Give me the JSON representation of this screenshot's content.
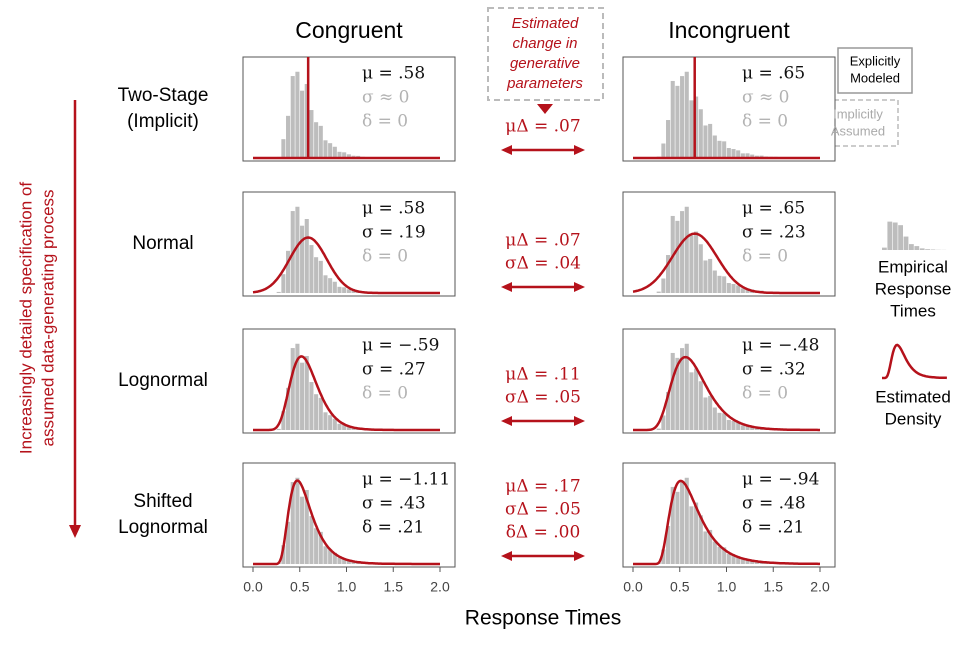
{
  "columns": [
    "Congruent",
    "Incongruent"
  ],
  "rows": [
    {
      "label": [
        "Two-Stage",
        "(Implicit)"
      ],
      "congruent": [
        {
          "text": "μ = .58",
          "implicit": false
        },
        {
          "text": "σ ≈ 0",
          "implicit": true
        },
        {
          "text": "δ = 0",
          "implicit": true
        }
      ],
      "incongruent": [
        {
          "text": "μ = .65",
          "implicit": false
        },
        {
          "text": "σ ≈ 0",
          "implicit": true
        },
        {
          "text": "δ = 0",
          "implicit": true
        }
      ],
      "change": [
        "μΔ = .07"
      ]
    },
    {
      "label": [
        "Normal"
      ],
      "congruent": [
        {
          "text": "μ = .58",
          "implicit": false
        },
        {
          "text": "σ = .19",
          "implicit": false
        },
        {
          "text": "δ = 0",
          "implicit": true
        }
      ],
      "incongruent": [
        {
          "text": "μ = .65",
          "implicit": false
        },
        {
          "text": "σ = .23",
          "implicit": false
        },
        {
          "text": "δ = 0",
          "implicit": true
        }
      ],
      "change": [
        "μΔ = .07",
        "σΔ = .04"
      ]
    },
    {
      "label": [
        "Lognormal"
      ],
      "congruent": [
        {
          "text": "μ = −.59",
          "implicit": false
        },
        {
          "text": "σ = .27",
          "implicit": false
        },
        {
          "text": "δ = 0",
          "implicit": true
        }
      ],
      "incongruent": [
        {
          "text": "μ = −.48",
          "implicit": false
        },
        {
          "text": "σ = .32",
          "implicit": false
        },
        {
          "text": "δ = 0",
          "implicit": true
        }
      ],
      "change": [
        "μΔ = .11",
        "σΔ = .05"
      ]
    },
    {
      "label": [
        "Shifted",
        "Lognormal"
      ],
      "congruent": [
        {
          "text": "μ = −1.11",
          "implicit": false
        },
        {
          "text": "σ = .43",
          "implicit": false
        },
        {
          "text": "δ = .21",
          "implicit": false
        }
      ],
      "incongruent": [
        {
          "text": "μ = −.94",
          "implicit": false
        },
        {
          "text": "σ = .48",
          "implicit": false
        },
        {
          "text": "δ = .21",
          "implicit": false
        }
      ],
      "change": [
        "μΔ = .17",
        "σΔ = .05",
        "δΔ = .00"
      ]
    }
  ],
  "x_axis": {
    "ticks": [
      "0.0",
      "0.5",
      "1.0",
      "1.5",
      "2.0"
    ],
    "label": "Response Times"
  },
  "side_label": [
    "Increasingly detailed specification of",
    "assumed data-generating process"
  ],
  "change_box": [
    "Estimated",
    "change in",
    "generative",
    "parameters"
  ],
  "annotations": {
    "explicit": [
      "Explicitly",
      "Modeled"
    ],
    "implicit": [
      "Implicitly",
      "Assumed"
    ]
  },
  "legend": {
    "empirical": [
      "Empirical",
      "Response",
      "Times"
    ],
    "density": [
      "Estimated",
      "Density"
    ]
  }
}
